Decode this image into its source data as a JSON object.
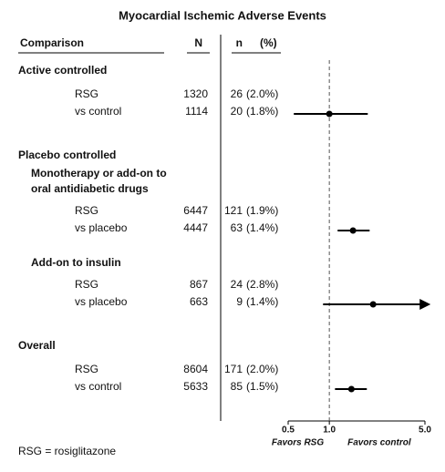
{
  "chart_data": {
    "type": "forest",
    "title": "Myocardial Ischemic Adverse Events",
    "columns": {
      "label": "Comparison",
      "N": "N",
      "n": "n",
      "pct": "(%)"
    },
    "log_scale": true,
    "xlim": [
      0.5,
      5
    ],
    "xticks": [
      0.5,
      {
        "value": 1,
        "label": "1.0"
      },
      {
        "value": 5,
        "label": "5.0"
      }
    ],
    "reference": 1,
    "color": "#000000",
    "favors": [
      "Favors RSG",
      "Favors control"
    ],
    "groups": [
      {
        "heading": "Active controlled",
        "comparisons": [
          {
            "rows": [
              {
                "label": "RSG",
                "N": 1320,
                "n": 26,
                "pct": "(2.0%)"
              },
              {
                "label": "vs control",
                "N": 1114,
                "n": 20,
                "pct": "(1.8%)"
              }
            ],
            "estimate": 1.0,
            "lower": 0.55,
            "upper": 1.91
          }
        ]
      },
      {
        "heading": "Placebo controlled",
        "comparisons": [
          {
            "subheading": [
              "Monotherapy or add-on to",
              "oral antidiabetic drugs"
            ],
            "rows": [
              {
                "label": "RSG",
                "N": 6447,
                "n": 121,
                "pct": "(1.9%)"
              },
              {
                "label": "vs placebo",
                "N": 4447,
                "n": 63,
                "pct": "(1.4%)"
              }
            ],
            "estimate": 1.49,
            "lower": 1.15,
            "upper": 1.97
          },
          {
            "subheading": [
              "Add-on to insulin"
            ],
            "rows": [
              {
                "label": "RSG",
                "N": 867,
                "n": 24,
                "pct": "(2.8%)"
              },
              {
                "label": "vs placebo",
                "N": 663,
                "n": 9,
                "pct": "(1.4%)"
              }
            ],
            "estimate": 2.09,
            "lower": 0.9,
            "upper": 5.5
          }
        ]
      },
      {
        "heading": "Overall",
        "comparisons": [
          {
            "rows": [
              {
                "label": "RSG",
                "N": 8604,
                "n": 171,
                "pct": "(2.0%)"
              },
              {
                "label": "vs control",
                "N": 5633,
                "n": 85,
                "pct": "(1.5%)"
              }
            ],
            "estimate": 1.45,
            "lower": 1.1,
            "upper": 1.88
          }
        ]
      }
    ],
    "footnote": "RSG = rosiglitazone"
  }
}
